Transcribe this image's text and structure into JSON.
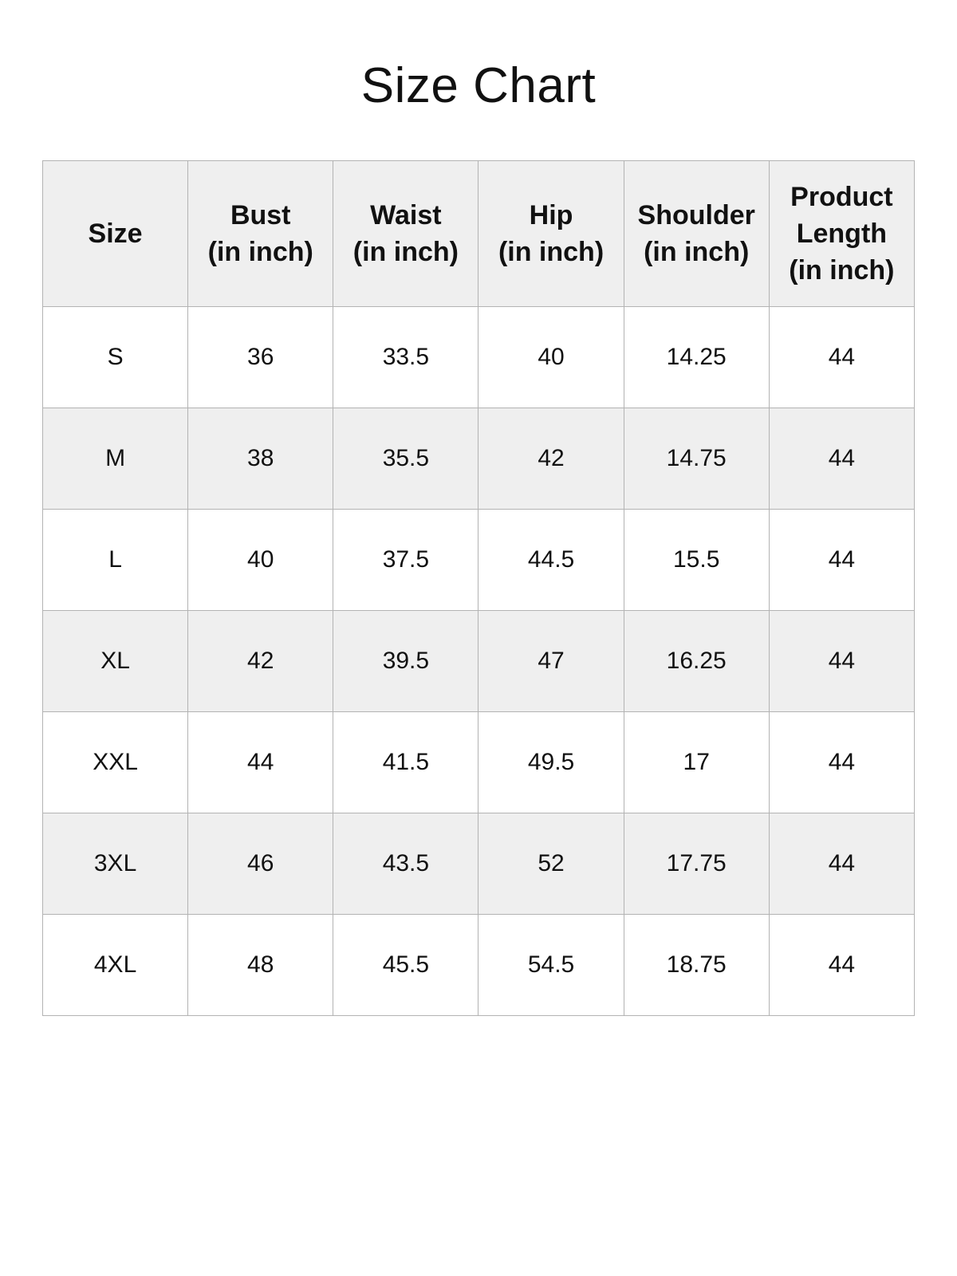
{
  "title": "Size Chart",
  "table": {
    "headers": [
      [
        "Size"
      ],
      [
        "Bust",
        "(in inch)"
      ],
      [
        "Waist",
        "(in inch)"
      ],
      [
        "Hip",
        "(in inch)"
      ],
      [
        "Shoulder",
        "(in inch)"
      ],
      [
        "Product",
        "Length",
        "(in inch)"
      ]
    ],
    "rows": [
      [
        "S",
        "36",
        "33.5",
        "40",
        "14.25",
        "44"
      ],
      [
        "M",
        "38",
        "35.5",
        "42",
        "14.75",
        "44"
      ],
      [
        "L",
        "40",
        "37.5",
        "44.5",
        "15.5",
        "44"
      ],
      [
        "XL",
        "42",
        "39.5",
        "47",
        "16.25",
        "44"
      ],
      [
        "XXL",
        "44",
        "41.5",
        "49.5",
        "17",
        "44"
      ],
      [
        "3XL",
        "46",
        "43.5",
        "52",
        "17.75",
        "44"
      ],
      [
        "4XL",
        "48",
        "45.5",
        "54.5",
        "18.75",
        "44"
      ]
    ],
    "colors": {
      "header_bg": "#efefef",
      "alt_row_bg": "#efefef",
      "border": "#b3b3b3"
    }
  }
}
